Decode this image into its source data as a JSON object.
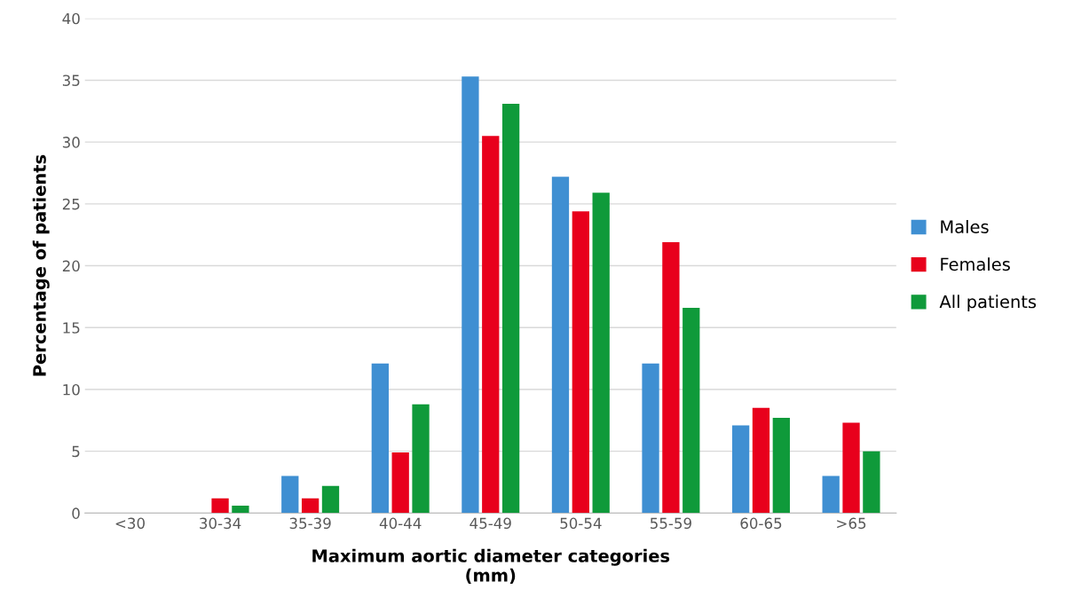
{
  "chart_data": {
    "type": "bar",
    "xlabel": "Maximum aortic diameter categories\n(mm)",
    "ylabel": "Percentage of patients",
    "categories": [
      "<30",
      "30-34",
      "35-39",
      "40-44",
      "45-49",
      "50-54",
      "55-59",
      "60-65",
      ">65"
    ],
    "series": [
      {
        "name": "Males",
        "color": "#3f8fd2",
        "values": [
          0,
          0,
          3.0,
          12.1,
          35.3,
          27.2,
          12.1,
          7.1,
          3.0
        ]
      },
      {
        "name": "Females",
        "color": "#e8001c",
        "values": [
          0,
          1.2,
          1.2,
          4.9,
          30.5,
          24.4,
          21.9,
          8.5,
          7.3
        ]
      },
      {
        "name": "All patients",
        "color": "#0f9a3a",
        "values": [
          0,
          0.6,
          2.2,
          8.8,
          33.1,
          25.9,
          16.6,
          7.7,
          5.0
        ]
      }
    ],
    "ylim": [
      0,
      40
    ],
    "yticks": [
      0,
      5,
      10,
      15,
      20,
      25,
      30,
      35,
      40
    ],
    "grid": "y",
    "legend": "right"
  }
}
